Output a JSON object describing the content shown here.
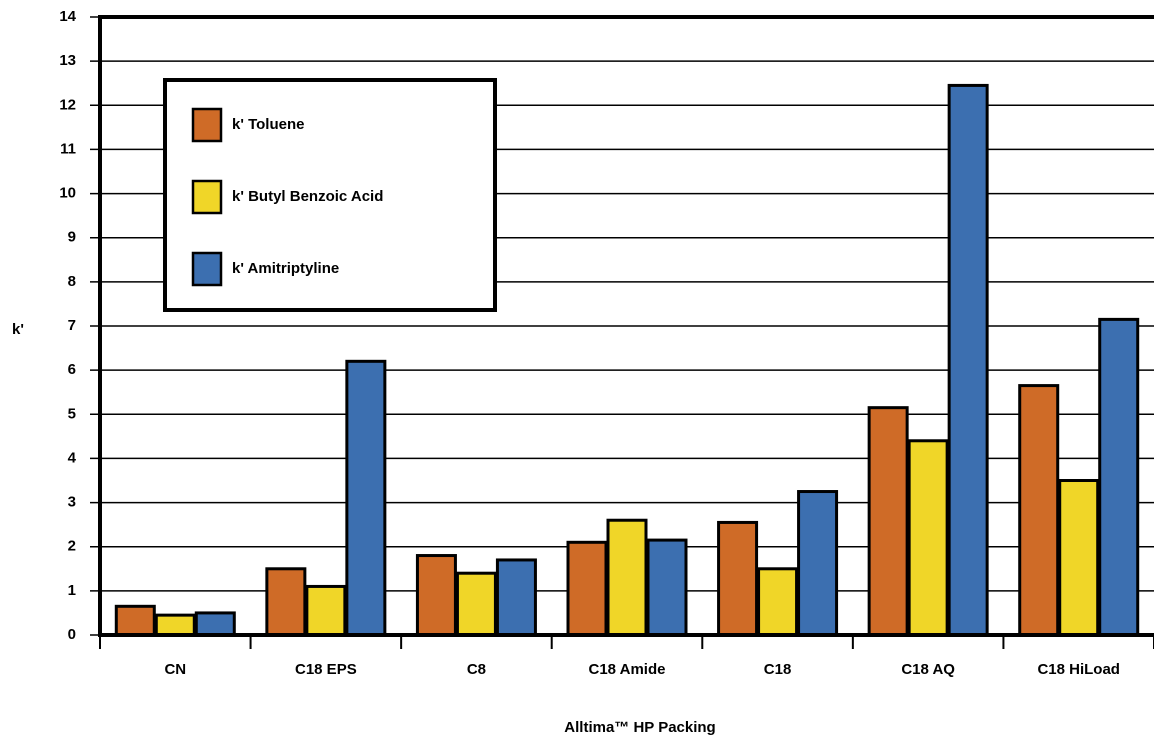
{
  "chart_data": {
    "type": "bar",
    "xlabel": "Alltima™ HP Packing",
    "ylabel": "k'",
    "categories": [
      "CN",
      "C18 EPS",
      "C8",
      "C18 Amide",
      "C18",
      "C18 AQ",
      "C18 HiLoad"
    ],
    "series": [
      {
        "name": "k' Toluene",
        "color": "#cf6b27",
        "values": [
          0.65,
          1.5,
          1.8,
          2.1,
          2.55,
          5.15,
          5.65
        ]
      },
      {
        "name": "k' Butyl Benzoic Acid",
        "color": "#f0d628",
        "values": [
          0.45,
          1.1,
          1.4,
          2.6,
          1.5,
          4.4,
          3.5
        ]
      },
      {
        "name": "k' Amitriptyline",
        "color": "#3c6fb0",
        "values": [
          0.5,
          6.2,
          1.7,
          2.15,
          3.25,
          12.45,
          7.15
        ]
      }
    ],
    "ylim": [
      0,
      14
    ],
    "yticks": [
      0,
      1,
      2,
      3,
      4,
      5,
      6,
      7,
      8,
      9,
      10,
      11,
      12,
      13,
      14
    ],
    "grid": true,
    "legend": "upper left"
  }
}
